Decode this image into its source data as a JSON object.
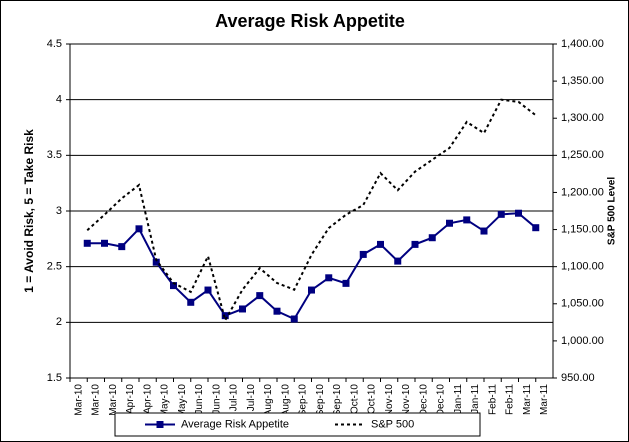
{
  "chart_data": {
    "type": "line",
    "title": "Average Risk Appetite",
    "y_label": "1 = Avoid Risk, 5 = Take Risk",
    "y2_label": "S&P 500 Level",
    "categories": [
      "Mar-10",
      "Mar-10",
      "Mar-10",
      "Apr-10",
      "Apr-10",
      "May-10",
      "May-10",
      "Jun-10",
      "Jun-10",
      "Jul-10",
      "Jul-10",
      "Aug-10",
      "Aug-10",
      "Sep-10",
      "Sep-10",
      "Sep-10",
      "Oct-10",
      "Oct-10",
      "Nov-10",
      "Nov-10",
      "Dec-10",
      "Dec-10",
      "Jan-11",
      "Jan-11",
      "Feb-11",
      "Feb-11",
      "Mar-11",
      "Mar-11"
    ],
    "series": [
      {
        "name": "Average Risk Appetite",
        "color": "#000080",
        "marker": "square",
        "values": [
          2.71,
          2.71,
          2.68,
          2.84,
          2.54,
          2.33,
          2.18,
          2.29,
          2.06,
          2.12,
          2.24,
          2.1,
          2.03,
          2.29,
          2.4,
          2.35,
          2.61,
          2.7,
          2.55,
          2.7,
          2.76,
          2.89,
          2.92,
          2.82,
          2.97,
          2.98,
          2.85,
          null
        ]
      },
      {
        "name": "S&P 500",
        "color": "#000000",
        "axis": "y2",
        "dashed": true,
        "values": [
          1149,
          1170,
          1192,
          1210,
          1109,
          1078,
          1066,
          1114,
          1028,
          1069,
          1098,
          1078,
          1069,
          1116,
          1152,
          1170,
          1183,
          1226,
          1203,
          1228,
          1244,
          1260,
          1295,
          1280,
          1325,
          1322,
          1304,
          null
        ]
      }
    ],
    "ylim": [
      1.5,
      4.5
    ],
    "yticks": [
      1.5,
      2,
      2.5,
      3,
      3.5,
      4,
      4.5
    ],
    "y2lim": [
      950,
      1400
    ],
    "y2ticks": [
      {
        "value": 950,
        "label": "950.00"
      },
      {
        "value": 1000,
        "label": "1,000.00"
      },
      {
        "value": 1050,
        "label": "1,050.00"
      },
      {
        "value": 1100,
        "label": "1,100.00"
      },
      {
        "value": 1150,
        "label": "1,150.00"
      },
      {
        "value": 1200,
        "label": "1,200.00"
      },
      {
        "value": 1250,
        "label": "1,250.00"
      },
      {
        "value": 1300,
        "label": "1,300.00"
      },
      {
        "value": 1350,
        "label": "1,350.00"
      },
      {
        "value": 1400,
        "label": "1,400.00"
      }
    ],
    "grid": true,
    "legend": "bottom"
  }
}
